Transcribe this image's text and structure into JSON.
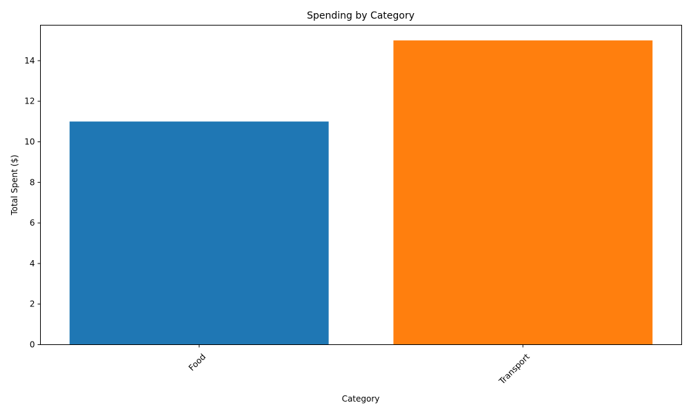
{
  "chart_data": {
    "type": "bar",
    "title": "Spending by Category",
    "xlabel": "Category",
    "ylabel": "Total Spent ($)",
    "categories": [
      "Food",
      "Transport"
    ],
    "values": [
      11,
      15
    ],
    "colors": [
      "#1f77b4",
      "#ff7f0e"
    ],
    "ylim": [
      0,
      15.75
    ],
    "yticks": [
      0,
      2,
      4,
      6,
      8,
      10,
      12,
      14
    ],
    "xtick_rotation_deg": 45,
    "grid": false,
    "legend": "none"
  }
}
